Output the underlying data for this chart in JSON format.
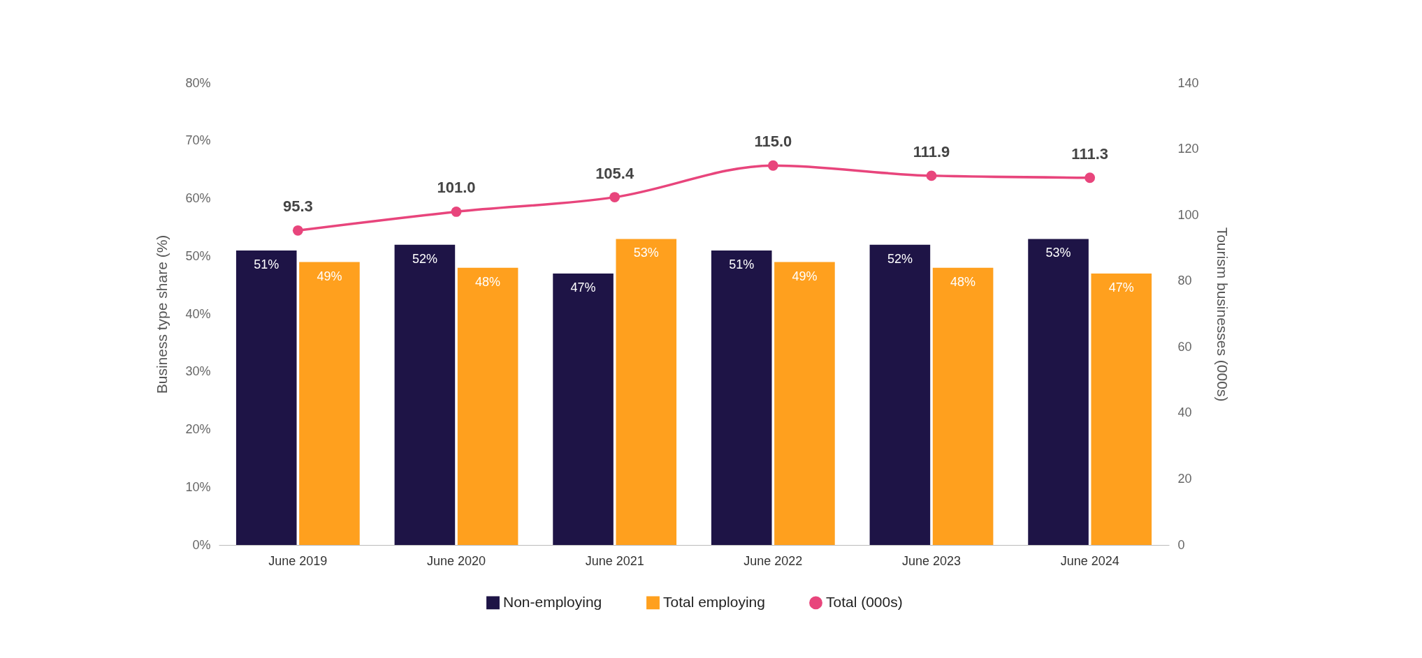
{
  "chart_data": {
    "type": "bar",
    "categories": [
      "June 2019",
      "June 2020",
      "June 2021",
      "June 2022",
      "June 2023",
      "June 2024"
    ],
    "ylabel": "Business type share (%)",
    "y2label": "Tourism businesses (000s)",
    "ylim": [
      0,
      80
    ],
    "yticks": [
      {
        "value": 0,
        "label": "0%"
      },
      {
        "value": 10,
        "label": "10%"
      },
      {
        "value": 20,
        "label": "20%"
      },
      {
        "value": 30,
        "label": "30%"
      },
      {
        "value": 40,
        "label": "40%"
      },
      {
        "value": 50,
        "label": "50%"
      },
      {
        "value": 60,
        "label": "60%"
      },
      {
        "value": 70,
        "label": "70%"
      },
      {
        "value": 80,
        "label": "80%"
      }
    ],
    "y2lim": [
      0,
      140
    ],
    "y2ticks": [
      0,
      20,
      40,
      60,
      80,
      100,
      120,
      140
    ],
    "series": [
      {
        "name": "Non-employing",
        "color": "#1e1446",
        "values": [
          51,
          52,
          47,
          51,
          52,
          53
        ],
        "value_labels": [
          "51%",
          "52%",
          "47%",
          "51%",
          "52%",
          "53%"
        ]
      },
      {
        "name": "Total employing",
        "color": "#ffa01e",
        "values": [
          49,
          48,
          53,
          49,
          48,
          47
        ],
        "value_labels": [
          "49%",
          "48%",
          "53%",
          "49%",
          "48%",
          "47%"
        ]
      },
      {
        "name": "Total (000s)",
        "type": "line",
        "axis": "y2",
        "color": "#e8457c",
        "marker": "circle",
        "values": [
          95.3,
          101.0,
          105.4,
          115.0,
          111.9,
          111.3
        ],
        "value_labels": [
          "95.3",
          "101.0",
          "105.4",
          "115.0",
          "111.9",
          "111.3"
        ]
      }
    ],
    "legend": "bottom",
    "grid": false
  }
}
